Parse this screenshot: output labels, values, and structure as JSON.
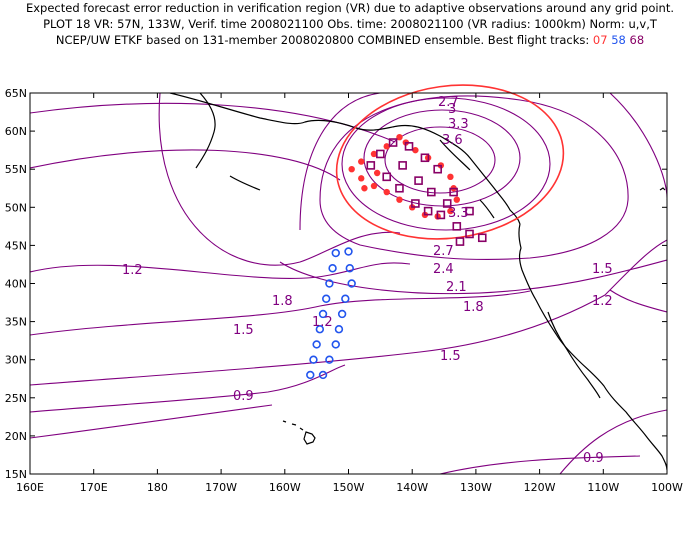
{
  "header": {
    "line1": "Expected forecast error reduction in verification region (VR) due to adaptive observations around any grid point.",
    "line2": "PLOT 18 VR: 57N, 133W, Verif. time 2008021100 Obs. time: 2008021100 (VR radius: 1000km) Norm: u,v,T",
    "line3_prefix": "NCEP/UW ETKF based on 131-member 2008020800 COMBINED ensemble.  Best flight tracks: ",
    "track_ids": [
      {
        "label": "07",
        "color": "#ff3333"
      },
      {
        "label": "58",
        "color": "#2255ee"
      },
      {
        "label": "68",
        "color": "#880066"
      }
    ]
  },
  "map": {
    "lat_labels": [
      "65N",
      "60N",
      "55N",
      "50N",
      "45N",
      "40N",
      "35N",
      "30N",
      "25N",
      "20N",
      "15N"
    ],
    "lon_labels": [
      "160E",
      "170E",
      "180",
      "170W",
      "160W",
      "150W",
      "140W",
      "130W",
      "120W",
      "110W",
      "100W"
    ],
    "contour_labels": [
      "2.7",
      "3",
      "3.3",
      "3.6",
      "3.3",
      "2.7",
      "2.4",
      "2.1",
      "1.8",
      "1.8",
      "1.5",
      "1.5",
      "1.5",
      "1.2",
      "1.2",
      "1.2",
      "0.9",
      "0.9"
    ],
    "colors": {
      "contour": "#800080",
      "verification_circle": "#ff3333",
      "track_07": "#ff3333",
      "track_58": "#2255ee",
      "track_68": "#880066",
      "coast": "#000000"
    },
    "tracks": {
      "track_07": {
        "marker": "filled-dot",
        "points": [
          [
            -142.0,
            59.2
          ],
          [
            -144.0,
            58.0
          ],
          [
            -146.0,
            57.0
          ],
          [
            -148.0,
            56.0
          ],
          [
            -149.5,
            55.0
          ],
          [
            -148.0,
            53.8
          ],
          [
            -146.0,
            52.8
          ],
          [
            -144.0,
            52.0
          ],
          [
            -142.0,
            51.0
          ],
          [
            -140.0,
            50.0
          ],
          [
            -138.0,
            49.0
          ],
          [
            -136.0,
            48.8
          ],
          [
            -134.0,
            49.5
          ],
          [
            -133.0,
            51.0
          ],
          [
            -133.5,
            52.5
          ],
          [
            -134.0,
            54.0
          ],
          [
            -135.5,
            55.5
          ],
          [
            -137.5,
            56.5
          ],
          [
            -139.5,
            57.5
          ],
          [
            -141.0,
            58.5
          ],
          [
            -145.5,
            54.5
          ],
          [
            -147.5,
            52.5
          ]
        ]
      },
      "track_58": {
        "marker": "open-circle",
        "points": [
          [
            -152.0,
            44.0
          ],
          [
            -150.0,
            44.2
          ],
          [
            -152.5,
            42.0
          ],
          [
            -149.8,
            42.0
          ],
          [
            -153.0,
            40.0
          ],
          [
            -149.5,
            40.0
          ],
          [
            -153.5,
            38.0
          ],
          [
            -150.5,
            38.0
          ],
          [
            -154.0,
            36.0
          ],
          [
            -151.0,
            36.0
          ],
          [
            -154.5,
            34.0
          ],
          [
            -151.5,
            34.0
          ],
          [
            -155.0,
            32.0
          ],
          [
            -152.0,
            32.0
          ],
          [
            -155.5,
            30.0
          ],
          [
            -153.0,
            30.0
          ],
          [
            -156.0,
            28.0
          ],
          [
            -154.0,
            28.0
          ]
        ]
      },
      "track_68": {
        "marker": "open-square",
        "points": [
          [
            -143.0,
            58.5
          ],
          [
            -140.5,
            58.0
          ],
          [
            -145.0,
            57.0
          ],
          [
            -146.5,
            55.5
          ],
          [
            -138.0,
            56.5
          ],
          [
            -136.0,
            55.0
          ],
          [
            -141.5,
            55.5
          ],
          [
            -144.0,
            54.0
          ],
          [
            -139.0,
            53.5
          ],
          [
            -142.0,
            52.5
          ],
          [
            -137.0,
            52.0
          ],
          [
            -133.5,
            52.0
          ],
          [
            -134.5,
            50.5
          ],
          [
            -139.5,
            50.5
          ],
          [
            -135.5,
            49.0
          ],
          [
            -137.5,
            49.5
          ],
          [
            -131.0,
            49.5
          ],
          [
            -133.0,
            47.5
          ],
          [
            -131.0,
            46.5
          ],
          [
            -129.0,
            46.0
          ],
          [
            -132.5,
            45.5
          ]
        ]
      }
    }
  }
}
